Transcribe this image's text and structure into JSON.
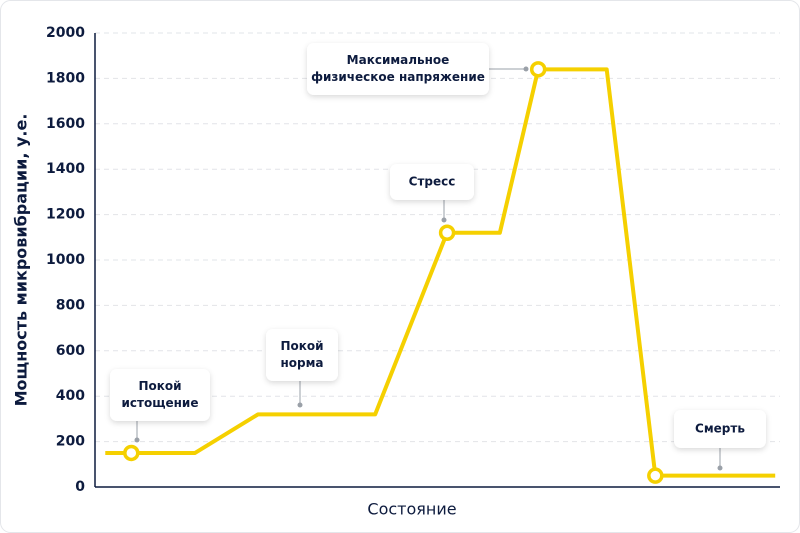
{
  "chart_data": {
    "type": "line",
    "x_label": "Состояние",
    "y_label": "Мощность микровибрации, у.е.",
    "x": [
      1.5,
      5.3,
      14.6,
      23.8,
      40.9,
      51.4,
      59.1,
      64.7,
      74.7,
      81.8,
      99.3
    ],
    "series": [
      {
        "color": "#f5d000",
        "values": [
          150,
          150,
          150,
          320,
          320,
          1120,
          1120,
          1840,
          1840,
          50,
          50
        ]
      }
    ],
    "markers": [
      1,
      5,
      7,
      9
    ],
    "xlim": [
      0,
      100
    ],
    "ylim": [
      0,
      2000
    ],
    "yticks": [
      0,
      200,
      400,
      600,
      800,
      1000,
      1200,
      1400,
      1600,
      1800,
      2000
    ],
    "grid": true,
    "annotations": [
      {
        "lines": [
          "Покой",
          "истощение"
        ]
      },
      {
        "lines": [
          "Покой",
          "норма"
        ]
      },
      {
        "lines": [
          "Стресс"
        ]
      },
      {
        "lines": [
          "Максимальное",
          "физическое напряжение"
        ]
      },
      {
        "lines": [
          "Смерть"
        ]
      }
    ]
  }
}
